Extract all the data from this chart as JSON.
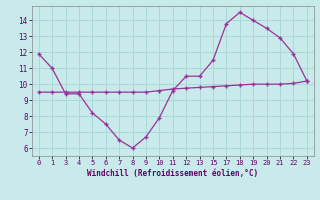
{
  "x_labels": [
    "0",
    "1",
    "3",
    "4",
    "5",
    "6",
    "7",
    "8",
    "9",
    "10",
    "11",
    "12",
    "13",
    "15",
    "17",
    "18",
    "19",
    "20",
    "21",
    "22",
    "23"
  ],
  "x_positions": [
    0,
    1,
    2,
    3,
    4,
    5,
    6,
    7,
    8,
    9,
    10,
    11,
    12,
    13,
    14,
    15,
    16,
    17,
    18,
    19,
    20
  ],
  "y_main": [
    11.9,
    11.0,
    9.4,
    9.4,
    8.2,
    7.5,
    6.5,
    6.0,
    6.7,
    7.9,
    9.6,
    10.5,
    10.5,
    11.5,
    13.8,
    14.5,
    14.0,
    13.5,
    12.9,
    11.9,
    10.2
  ],
  "y_flat": [
    9.5,
    9.5,
    9.5,
    9.5,
    9.5,
    9.5,
    9.5,
    9.5,
    9.5,
    9.6,
    9.7,
    9.75,
    9.8,
    9.85,
    9.9,
    9.95,
    10.0,
    10.0,
    10.0,
    10.05,
    10.2
  ],
  "line_color": "#993399",
  "bg_color": "#c8eaea",
  "grid_color": "#aad8d8",
  "xlabel": "Windchill (Refroidissement éolien,°C)",
  "yticks": [
    6,
    7,
    8,
    9,
    10,
    11,
    12,
    13,
    14
  ],
  "ylim": [
    5.5,
    14.9
  ],
  "xlim": [
    -0.5,
    20.5
  ]
}
